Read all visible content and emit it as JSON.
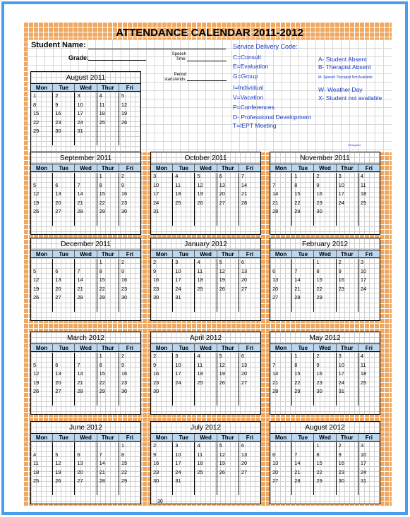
{
  "title": "ATTENDANCE CALENDAR 2011-2012",
  "labels": {
    "student_name": "Student Name:",
    "grade": "Grade:",
    "speech_time": "Speech Time:",
    "period": "Period starts/ends:"
  },
  "service_codes": {
    "heading": "Service Delivery Code:",
    "items": [
      "C=Consult",
      "E=Evaluation",
      "G=Group",
      "I=Individual",
      "V=Vacation",
      "P=Conferences",
      "D- Professional Development",
      "T=IEPT Meeting"
    ],
    "absence": [
      "A- Student Absent",
      "B- Therapist Absent"
    ],
    "tiny": "M- Speech Therapist Not Available",
    "absence2": [
      "W- Weather Day",
      "X- Student not available"
    ]
  },
  "copyright": "©Easybee",
  "day_headers": [
    "Mon",
    "Tue",
    "Wed",
    "Thur",
    "Fri"
  ],
  "months": [
    {
      "name": "August 2011",
      "weeks": [
        [
          "1",
          "2",
          "3",
          "4",
          "5"
        ],
        [
          "8",
          "9",
          "10",
          "11",
          "12"
        ],
        [
          "15",
          "16",
          "17",
          "18",
          "19"
        ],
        [
          "22",
          "23",
          "24",
          "25",
          "26"
        ],
        [
          "29",
          "30",
          "31",
          "",
          ""
        ],
        [
          "",
          "",
          "",
          "",
          ""
        ]
      ]
    },
    {
      "name": "September 2011",
      "weeks": [
        [
          "",
          "",
          "",
          "1",
          "2"
        ],
        [
          "5",
          "6",
          "7",
          "8",
          "9"
        ],
        [
          "12",
          "13",
          "14",
          "15",
          "16"
        ],
        [
          "19",
          "20",
          "21",
          "22",
          "23"
        ],
        [
          "26",
          "27",
          "28",
          "29",
          "30"
        ],
        [
          "",
          "",
          "",
          "",
          ""
        ]
      ]
    },
    {
      "name": "October 2011",
      "weeks": [
        [
          "3",
          "4",
          "5",
          "6",
          "7"
        ],
        [
          "10",
          "11",
          "12",
          "13",
          "14"
        ],
        [
          "17",
          "18",
          "19",
          "20",
          "21"
        ],
        [
          "24",
          "25",
          "26",
          "27",
          "28"
        ],
        [
          "31",
          "",
          "",
          "",
          ""
        ],
        [
          "",
          "",
          "",
          "",
          ""
        ]
      ]
    },
    {
      "name": "November 2011",
      "weeks": [
        [
          "",
          "1",
          "2",
          "3",
          "4"
        ],
        [
          "7",
          "8",
          "9",
          "10",
          "11"
        ],
        [
          "14",
          "15",
          "16",
          "17",
          "18"
        ],
        [
          "21",
          "22",
          "23",
          "24",
          "25"
        ],
        [
          "28",
          "29",
          "30",
          "",
          ""
        ],
        [
          "",
          "",
          "",
          "",
          ""
        ]
      ]
    },
    {
      "name": "December 2011",
      "weeks": [
        [
          "",
          "",
          "",
          "1",
          "2"
        ],
        [
          "5",
          "6",
          "7",
          "8",
          "9"
        ],
        [
          "12",
          "13",
          "14",
          "15",
          "16"
        ],
        [
          "19",
          "20",
          "21",
          "22",
          "23"
        ],
        [
          "26",
          "27",
          "28",
          "29",
          "30"
        ],
        [
          "",
          "",
          "",
          "",
          ""
        ]
      ]
    },
    {
      "name": "January 2012",
      "weeks": [
        [
          "2",
          "3",
          "4",
          "5",
          "6"
        ],
        [
          "9",
          "10",
          "11",
          "12",
          "13"
        ],
        [
          "16",
          "17",
          "18",
          "19",
          "20"
        ],
        [
          "23",
          "24",
          "25",
          "26",
          "27"
        ],
        [
          "30",
          "31",
          "",
          "",
          ""
        ],
        [
          "",
          "",
          "",
          "",
          ""
        ]
      ]
    },
    {
      "name": "February 2012",
      "weeks": [
        [
          "",
          "",
          "1",
          "2",
          "3"
        ],
        [
          "6",
          "7",
          "8",
          "9",
          "10"
        ],
        [
          "13",
          "14",
          "15",
          "16",
          "17"
        ],
        [
          "20",
          "21",
          "22",
          "23",
          "24"
        ],
        [
          "27",
          "28",
          "29",
          "",
          ""
        ],
        [
          "",
          "",
          "",
          "",
          ""
        ]
      ]
    },
    {
      "name": "March 2012",
      "weeks": [
        [
          "",
          "",
          "",
          "1",
          "2"
        ],
        [
          "5",
          "6",
          "7",
          "8",
          "9"
        ],
        [
          "12",
          "13",
          "14",
          "15",
          "16"
        ],
        [
          "19",
          "20",
          "21",
          "22",
          "23"
        ],
        [
          "26",
          "27",
          "28",
          "29",
          "30"
        ],
        [
          "",
          "",
          "",
          "",
          ""
        ]
      ]
    },
    {
      "name": "April 2012",
      "weeks": [
        [
          "2",
          "3",
          "4",
          "5",
          "6"
        ],
        [
          "9",
          "10",
          "11",
          "12",
          "13"
        ],
        [
          "16",
          "17",
          "18",
          "19",
          "20"
        ],
        [
          "23",
          "24",
          "25",
          "26",
          "27"
        ],
        [
          "30",
          "",
          "",
          "",
          ""
        ],
        [
          "",
          "",
          "",
          "",
          ""
        ]
      ]
    },
    {
      "name": "May 2012",
      "weeks": [
        [
          "",
          "1",
          "2",
          "3",
          "4"
        ],
        [
          "7",
          "8",
          "9",
          "10",
          "11"
        ],
        [
          "14",
          "15",
          "16",
          "17",
          "18"
        ],
        [
          "21",
          "22",
          "23",
          "24",
          "25"
        ],
        [
          "28",
          "29",
          "30",
          "31",
          ""
        ],
        [
          "",
          "",
          "",
          "",
          ""
        ]
      ]
    },
    {
      "name": "June 2012",
      "weeks": [
        [
          "",
          "",
          "",
          "",
          "1"
        ],
        [
          "4",
          "5",
          "6",
          "7",
          "8"
        ],
        [
          "11",
          "12",
          "13",
          "14",
          "15"
        ],
        [
          "18",
          "19",
          "20",
          "21",
          "22"
        ],
        [
          "25",
          "26",
          "27",
          "28",
          "29"
        ],
        [
          "",
          "",
          "",
          "",
          ""
        ]
      ]
    },
    {
      "name": "July 2012",
      "weeks": [
        [
          "2",
          "3",
          "4",
          "5",
          "6"
        ],
        [
          "9",
          "10",
          "11",
          "12",
          "13"
        ],
        [
          "16",
          "17",
          "18",
          "19",
          "20"
        ],
        [
          "23",
          "24",
          "25",
          "26",
          "27"
        ],
        [
          "30",
          "31",
          "",
          "",
          ""
        ],
        [
          "",
          "",
          "",
          "",
          ""
        ]
      ]
    },
    {
      "name": "August 2012",
      "weeks": [
        [
          "",
          "",
          "1",
          "2",
          "3"
        ],
        [
          "6",
          "7",
          "8",
          "9",
          "10"
        ],
        [
          "13",
          "14",
          "15",
          "16",
          "17"
        ],
        [
          "20",
          "21",
          "22",
          "23",
          "24"
        ],
        [
          "27",
          "28",
          "29",
          "30",
          "31"
        ],
        [
          "",
          "",
          "",
          "",
          ""
        ]
      ]
    }
  ],
  "footer_number": "30"
}
